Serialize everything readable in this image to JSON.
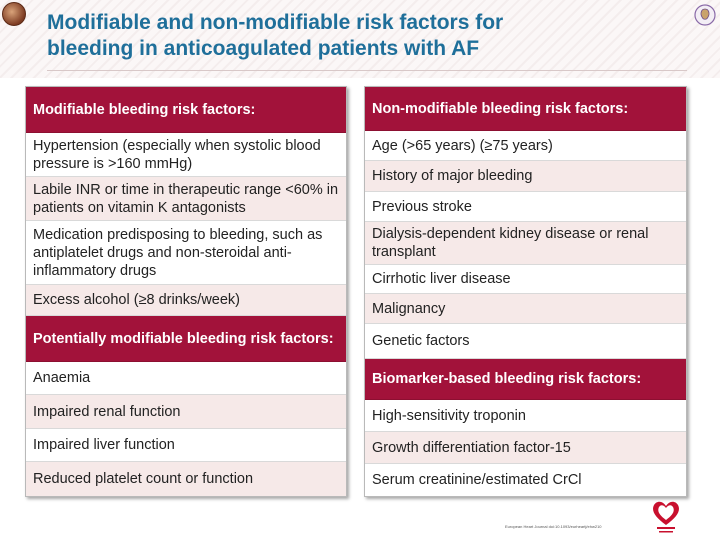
{
  "title_line1": "Modifiable and non-modifiable risk factors for",
  "title_line2": "bleeding in anticoagulated patients with AF",
  "left": {
    "header1": "Modifiable bleeding risk factors:",
    "rows1": [
      "Hypertension (especially when systolic blood pressure is >160 mmHg)",
      "Labile INR or time in therapeutic range <60% in patients on vitamin K antagonists",
      "Medication predisposing to bleeding, such as antiplatelet drugs and non-steroidal anti-inflammatory drugs",
      "Excess alcohol (≥8 drinks/week)"
    ],
    "header2": "Potentially modifiable bleeding risk factors:",
    "rows2": [
      "Anaemia",
      "Impaired renal function",
      "Impaired liver function",
      "Reduced platelet count or function"
    ]
  },
  "right": {
    "header1": "Non-modifiable bleeding risk factors:",
    "rows1": [
      "Age (>65 years) (≥75 years)",
      "History of major bleeding",
      "Previous stroke",
      "Dialysis-dependent kidney disease or renal transplant",
      "Cirrhotic liver disease",
      "Malignancy",
      "Genetic factors"
    ],
    "header2": "Biomarker-based bleeding risk factors:",
    "rows2": [
      "High-sensitivity troponin",
      "Growth differentiation factor-15",
      "Serum creatinine/estimated CrCl"
    ]
  },
  "footer_citation": "European Heart Journal doi:10.1093/eurheartj/ehw210",
  "colors": {
    "header_bg": "#a2123a",
    "alt_row_bg": "#f6e9e8",
    "title": "#1f6f9a"
  }
}
